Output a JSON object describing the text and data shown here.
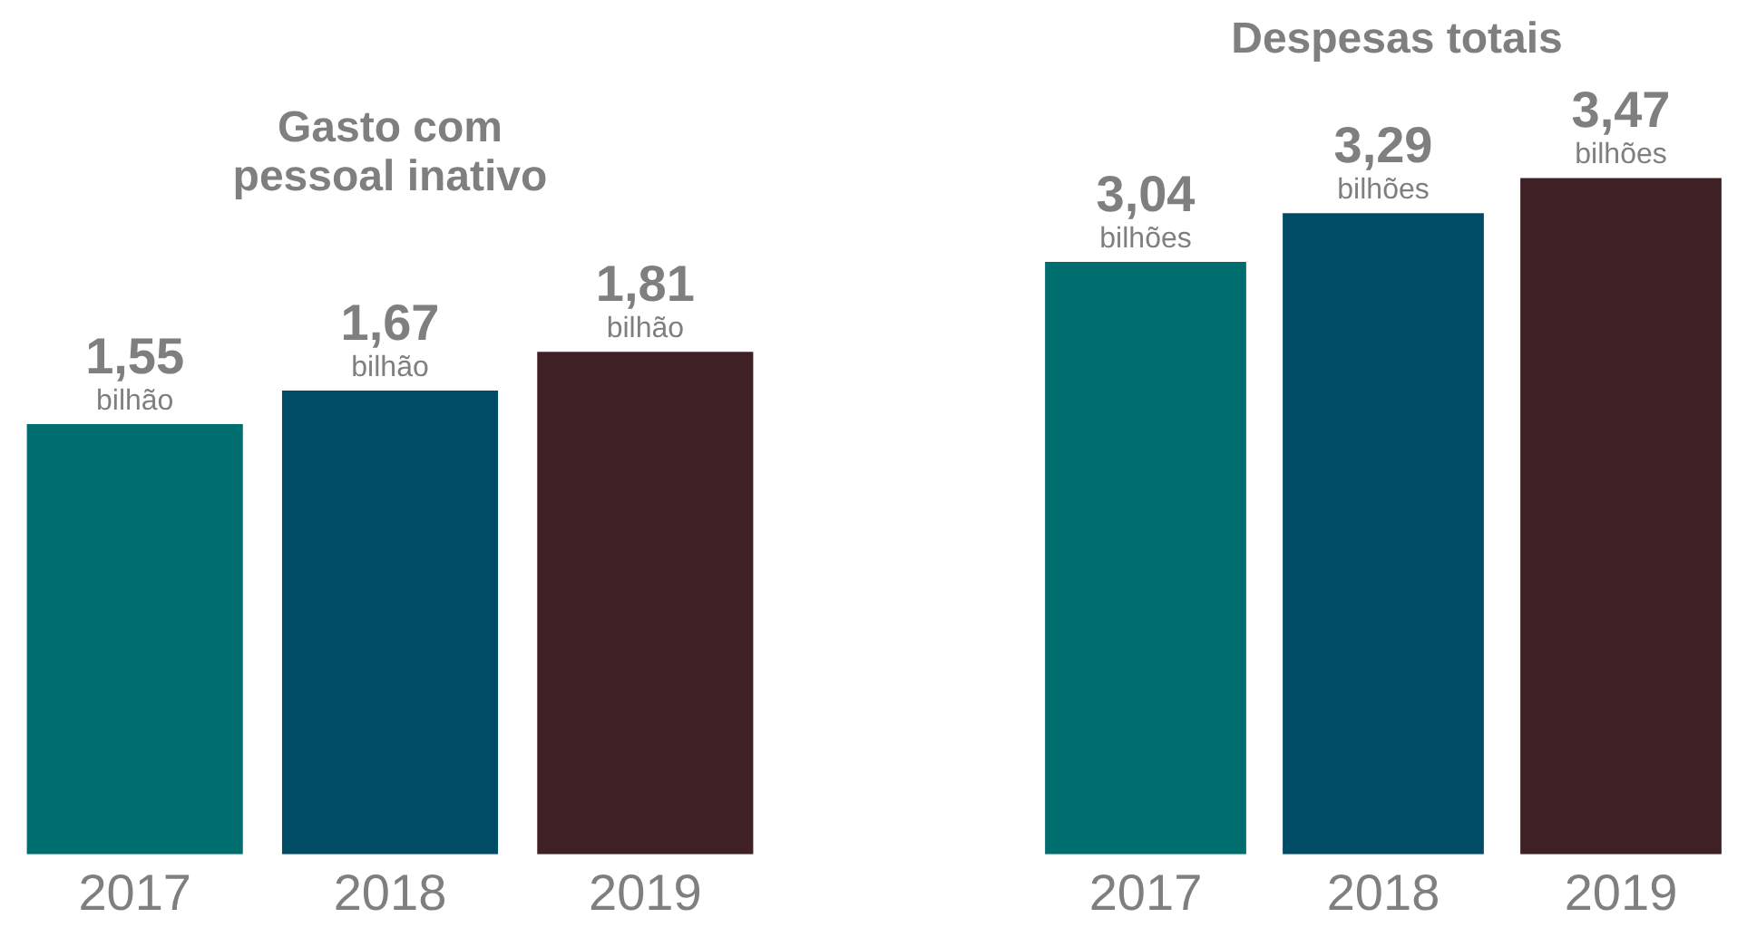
{
  "chart_data": [
    {
      "type": "bar",
      "title": "Gasto com pessoal inativo",
      "categories": [
        "2017",
        "2018",
        "2019"
      ],
      "values": [
        1.55,
        1.67,
        1.81
      ],
      "colors": [
        "#006d6f",
        "#004c66",
        "#3f2024"
      ],
      "value_labels": [
        "1,55",
        "1,67",
        "1,81"
      ],
      "annotations": [
        {
          "text": "bilhão",
          "x": "2017",
          "y": 1.55
        },
        {
          "text": "bilhão",
          "x": "2018",
          "y": 1.67
        },
        {
          "text": "bilhão",
          "x": "2019",
          "y": 1.81
        }
      ],
      "grid": false,
      "legend": false,
      "tick_labels": "x"
    },
    {
      "type": "bar",
      "title": "Despesas totais",
      "categories": [
        "2017",
        "2018",
        "2019"
      ],
      "values": [
        3.04,
        3.29,
        3.47
      ],
      "colors": [
        "#006d6f",
        "#004c66",
        "#3f2024"
      ],
      "value_labels": [
        "3,04",
        "3,29",
        "3,47"
      ],
      "annotations": [
        {
          "text": "bilhões",
          "x": "2017",
          "y": 3.04
        },
        {
          "text": "bilhões",
          "x": "2018",
          "y": 3.29
        },
        {
          "text": "bilhões",
          "x": "2019",
          "y": 3.47
        }
      ],
      "grid": false,
      "legend": false,
      "tick_labels": "x"
    }
  ]
}
